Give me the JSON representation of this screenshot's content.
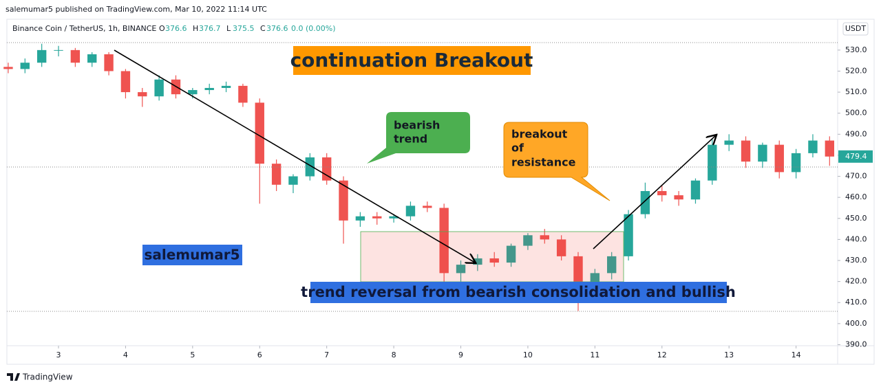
{
  "header": {
    "publisher": "salemumar5 published on TradingView.com, Mar 10, 2022 11:14 UTC",
    "symbol": "Binance Coin / TetherUS, 1h, BINANCE",
    "ohlc": [
      {
        "label": "O",
        "value": 376.6
      },
      {
        "label": "H",
        "value": 376.7
      },
      {
        "label": "L",
        "value": 375.5
      },
      {
        "label": "C",
        "value": 376.6
      }
    ],
    "change": "0.0 (0.00%)",
    "currency": "USDT",
    "footer": "TradingView"
  },
  "chart_data": {
    "type": "candlestick",
    "title": "continuation Breakout",
    "annotations": {
      "bearish": [
        "bearish",
        "trend"
      ],
      "breakout": [
        "breakout",
        "of",
        "resistance"
      ],
      "author": "salemumar5",
      "reversal": "trend reversal from bearish consolidation and bullish"
    },
    "up_color": "#26a69a",
    "down_color": "#ef5350",
    "last_price": 479.4,
    "x": [
      2.25,
      2.5,
      2.75,
      3,
      3.25,
      3.5,
      3.75,
      4,
      4.25,
      4.5,
      4.75,
      5,
      5.25,
      5.5,
      5.75,
      6,
      6.25,
      6.5,
      6.75,
      7,
      7.25,
      7.5,
      7.75,
      8,
      8.25,
      8.5,
      8.75,
      9,
      9.25,
      9.5,
      9.75,
      10,
      10.25,
      10.5,
      10.75,
      11,
      11.25,
      11.5,
      11.75,
      12,
      12.25,
      12.5,
      12.75,
      13,
      13.25,
      13.5,
      13.75,
      14,
      14.25,
      14.5
    ],
    "open": [
      522,
      521,
      524,
      530,
      530,
      524,
      528,
      520,
      510,
      508,
      516,
      509,
      511,
      512,
      513,
      505,
      476,
      466,
      470,
      479,
      468,
      449,
      451,
      450,
      451,
      456,
      455,
      424,
      428,
      431,
      429,
      437,
      442,
      440,
      432,
      418,
      424,
      432,
      452,
      463,
      461,
      459,
      468,
      485,
      487,
      477,
      485,
      472,
      481,
      487
    ],
    "high": [
      524,
      526,
      533,
      532,
      531,
      529,
      529,
      521,
      512,
      518,
      518,
      512,
      514,
      515,
      514,
      507,
      478,
      471,
      481,
      481,
      470,
      453,
      453,
      452,
      458,
      458,
      457,
      430,
      433,
      434,
      438,
      443,
      445,
      442,
      434,
      426,
      434,
      454,
      467,
      466,
      463,
      469,
      488,
      490,
      489,
      486,
      487,
      483,
      490,
      489
    ],
    "low": [
      519,
      519,
      522,
      527,
      522,
      522,
      518,
      507,
      503,
      506,
      507,
      507,
      509,
      510,
      503,
      457,
      463,
      462,
      468,
      466,
      438,
      446,
      447,
      448,
      449,
      453,
      417,
      420,
      425,
      427,
      427,
      435,
      438,
      430,
      406,
      415,
      421,
      430,
      450,
      458,
      456,
      457,
      466,
      482,
      474,
      474,
      469,
      469,
      479,
      475
    ],
    "close": [
      521,
      524,
      530,
      530,
      524,
      528,
      520,
      510,
      508,
      516,
      509,
      511,
      512,
      513,
      505,
      476,
      466,
      470,
      479,
      468,
      449,
      451,
      450,
      451,
      456,
      455,
      424,
      428,
      431,
      429,
      437,
      442,
      440,
      432,
      418,
      424,
      432,
      452,
      463,
      461,
      459,
      468,
      485,
      487,
      477,
      485,
      472,
      481,
      487,
      479.4
    ],
    "xlim": [
      2.23,
      14.62
    ],
    "ylim": [
      389.5,
      534.2
    ],
    "xticks": [
      3,
      4,
      5,
      6,
      7,
      8,
      9,
      10,
      11,
      12,
      13,
      14
    ],
    "yticks": [
      {
        "value": 390,
        "label": "390.0"
      },
      {
        "value": 400,
        "label": "400.0"
      },
      {
        "value": 410,
        "label": "410.0"
      },
      {
        "value": 420,
        "label": "420.0"
      },
      {
        "value": 430,
        "label": "430.0"
      },
      {
        "value": 440,
        "label": "440.0"
      },
      {
        "value": 450,
        "label": "450.0"
      },
      {
        "value": 460,
        "label": "460.0"
      },
      {
        "value": 470,
        "label": "470.0"
      },
      {
        "value": 480,
        "label": "480.0"
      },
      {
        "value": 490,
        "label": "490.0"
      },
      {
        "value": 500,
        "label": "500.0"
      },
      {
        "value": 510,
        "label": "510.0"
      },
      {
        "value": 520,
        "label": "520.0"
      },
      {
        "value": 530,
        "label": "530.0"
      }
    ]
  }
}
